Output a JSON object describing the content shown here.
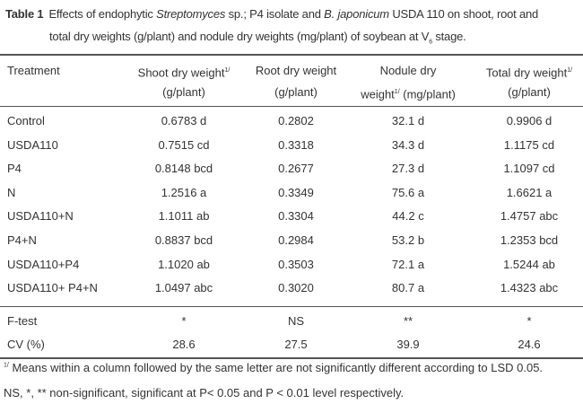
{
  "caption": {
    "label": "Table 1",
    "line1_a": "Effects of endophytic ",
    "line1_italic1": "Streptomyces",
    "line1_b": " sp.; P4 isolate and ",
    "line1_italic2": "B. japonicum",
    "line1_c": " USDA 110 on shoot, root and",
    "line2_a": "total dry weights (g/plant) and nodule dry weights (mg/plant)  of soybean at V",
    "line2_sub": "6",
    "line2_b": " stage."
  },
  "headers": {
    "treatment": "Treatment",
    "shoot_1": "Shoot dry weight",
    "shoot_sup": "1/",
    "shoot_2": "(g/plant)",
    "root_1": "Root dry weight",
    "root_2": "(g/plant)",
    "nodule_1": "Nodule dry",
    "nodule_2a": "weight",
    "nodule_sup": "1/",
    "nodule_2b": " (mg/plant)",
    "total_1": "Total dry weight",
    "total_sup": "1/",
    "total_2": "(g/plant)"
  },
  "rows": [
    [
      "Control",
      "0.6783 d",
      "0.2802",
      "32.1 d",
      "0.9906 d"
    ],
    [
      "USDA110",
      "0.7515 cd",
      "0.3318",
      "34.3 d",
      "1.1175 cd"
    ],
    [
      "P4",
      "0.8148 bcd",
      "0.2677",
      "27.3 d",
      "1.1097 cd"
    ],
    [
      "N",
      "1.2516 a",
      "0.3349",
      "75.6 a",
      "1.6621 a"
    ],
    [
      "USDA110+N",
      "1.1011 ab",
      "0.3304",
      "44.2 c",
      "1.4757 abc"
    ],
    [
      "P4+N",
      "0.8837 bcd",
      "0.2984",
      "53.2 b",
      "1.2353 bcd"
    ],
    [
      "USDA110+P4",
      "1.1020 ab",
      "0.3503",
      "72.1 a",
      "1.5244 ab"
    ],
    [
      "USDA110+ P4+N",
      "1.0497 abc",
      "0.3020",
      "80.7 a",
      "1.4323 abc"
    ]
  ],
  "stats": [
    [
      "F-test",
      "*",
      "NS",
      "**",
      "*"
    ],
    [
      "CV (%)",
      "28.6",
      "27.5",
      "39.9",
      "24.6"
    ]
  ],
  "footnotes": {
    "sup": "1/",
    "note1": " Means within a column followed by the same letter are not significantly different according to LSD 0.05.",
    "note2": "NS, *, ** non-significant, significant at  P< 0.05 and P < 0.01 level respectively."
  }
}
